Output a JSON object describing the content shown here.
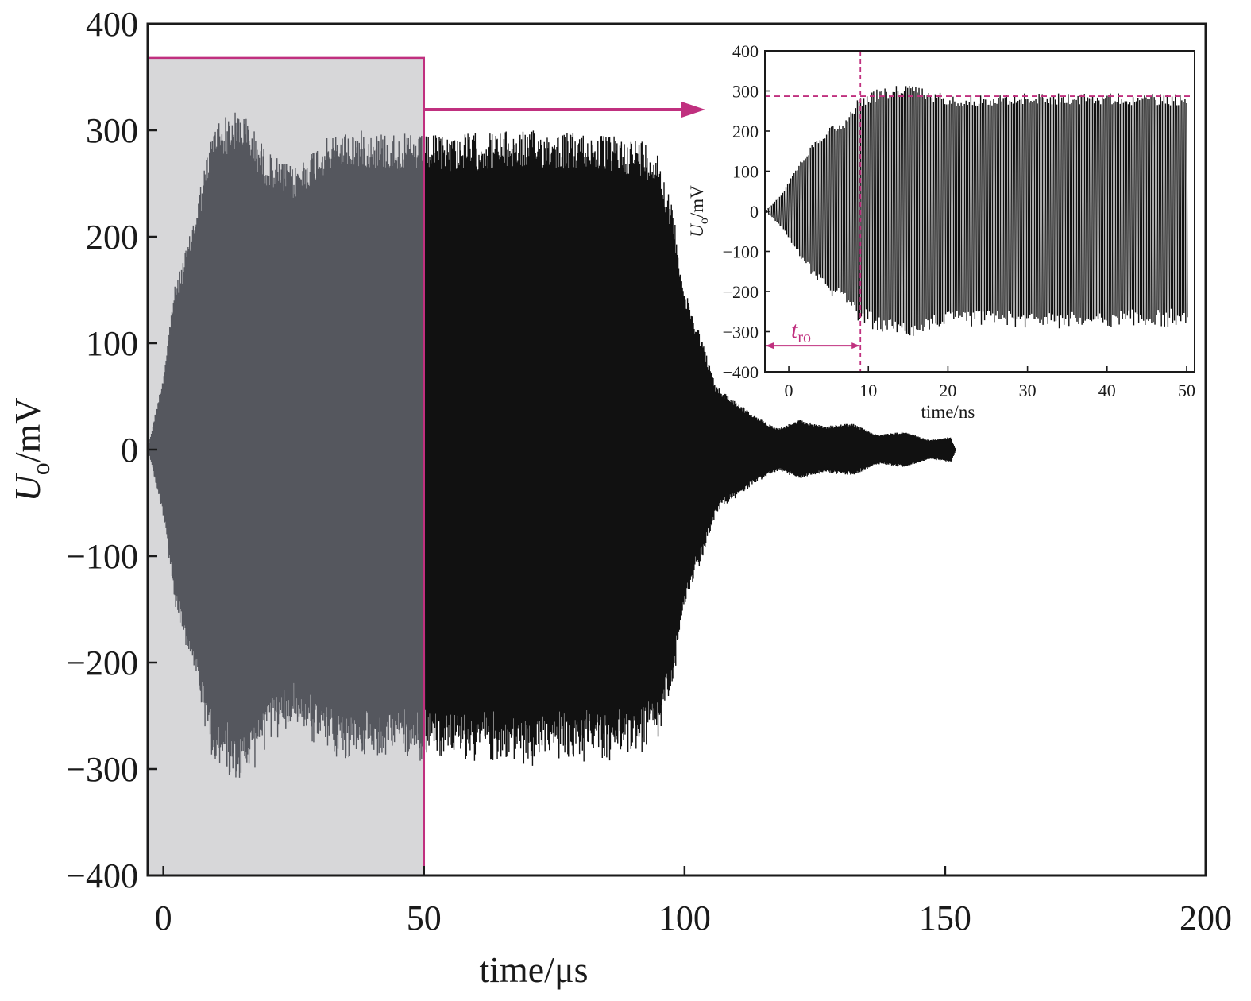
{
  "chart_data": {
    "type": "line",
    "main": {
      "x_axis": {
        "label": "time/μs",
        "unit": "μs",
        "range": [
          -3,
          200
        ],
        "ticks": [
          0,
          50,
          100,
          150,
          200
        ],
        "tick_labels": [
          "0",
          "50",
          "100",
          "150",
          "200"
        ]
      },
      "y_axis": {
        "label_base": "U",
        "label_sub": "o",
        "label_unit": "/mV",
        "range": [
          -400,
          400
        ],
        "ticks": [
          -400,
          -300,
          -200,
          -100,
          0,
          100,
          200,
          300,
          400
        ],
        "tick_labels": [
          "−400",
          "−300",
          "−200",
          "−100",
          "0",
          "100",
          "200",
          "300",
          "400"
        ]
      },
      "highlight_region": {
        "x_range": [
          -3,
          50
        ],
        "y_range": [
          -400,
          368
        ]
      },
      "envelope_points": [
        {
          "t": -3,
          "amp": 0
        },
        {
          "t": 0,
          "amp": 70
        },
        {
          "t": 2,
          "amp": 150
        },
        {
          "t": 5,
          "amp": 200
        },
        {
          "t": 8,
          "amp": 270
        },
        {
          "t": 10,
          "amp": 310
        },
        {
          "t": 15,
          "amp": 320
        },
        {
          "t": 20,
          "amp": 280
        },
        {
          "t": 25,
          "amp": 265
        },
        {
          "t": 30,
          "amp": 290
        },
        {
          "t": 35,
          "amp": 300
        },
        {
          "t": 40,
          "amp": 300
        },
        {
          "t": 50,
          "amp": 295
        },
        {
          "t": 60,
          "amp": 298
        },
        {
          "t": 70,
          "amp": 300
        },
        {
          "t": 80,
          "amp": 298
        },
        {
          "t": 92,
          "amp": 292
        },
        {
          "t": 95,
          "amp": 280
        },
        {
          "t": 98,
          "amp": 220
        },
        {
          "t": 100,
          "amp": 150
        },
        {
          "t": 103,
          "amp": 110
        },
        {
          "t": 106,
          "amp": 60
        },
        {
          "t": 110,
          "amp": 45
        },
        {
          "t": 114,
          "amp": 30
        },
        {
          "t": 118,
          "amp": 20
        },
        {
          "t": 122,
          "amp": 28
        },
        {
          "t": 127,
          "amp": 22
        },
        {
          "t": 132,
          "amp": 25
        },
        {
          "t": 137,
          "amp": 14
        },
        {
          "t": 142,
          "amp": 17
        },
        {
          "t": 147,
          "amp": 9
        },
        {
          "t": 151,
          "amp": 12
        },
        {
          "t": 152,
          "amp": 0
        }
      ]
    },
    "inset": {
      "x_axis": {
        "label": "time/ns",
        "unit": "ns",
        "range": [
          -3,
          51
        ],
        "ticks": [
          0,
          10,
          20,
          30,
          40,
          50
        ],
        "tick_labels": [
          "0",
          "10",
          "20",
          "30",
          "40",
          "50"
        ]
      },
      "y_axis": {
        "label_base": "U",
        "label_sub": "o",
        "label_unit": "/mV",
        "range": [
          -400,
          400
        ],
        "ticks": [
          -400,
          -300,
          -200,
          -100,
          0,
          100,
          200,
          300,
          400
        ],
        "tick_labels": [
          "−400",
          "−300",
          "−200",
          "−100",
          "0",
          "100",
          "200",
          "300",
          "400"
        ]
      },
      "steady_level_mv": 287,
      "t_ro_ns": 9,
      "annotation": {
        "base": "t",
        "sub": "ro"
      },
      "envelope_points": [
        {
          "t": -3,
          "amp": 0
        },
        {
          "t": -1,
          "amp": 40
        },
        {
          "t": 1,
          "amp": 110
        },
        {
          "t": 3,
          "amp": 170
        },
        {
          "t": 5,
          "amp": 210
        },
        {
          "t": 7,
          "amp": 230
        },
        {
          "t": 9,
          "amp": 290
        },
        {
          "t": 12,
          "amp": 310
        },
        {
          "t": 15,
          "amp": 320
        },
        {
          "t": 18,
          "amp": 300
        },
        {
          "t": 22,
          "amp": 290
        },
        {
          "t": 30,
          "amp": 295
        },
        {
          "t": 40,
          "amp": 295
        },
        {
          "t": 50,
          "amp": 292
        }
      ]
    },
    "colors": {
      "signal": "#111111",
      "signal_in_region": "#55575e",
      "region_fill": "#d7d7d9",
      "accent": "#c0307f",
      "axis": "#1a1a1a"
    }
  }
}
